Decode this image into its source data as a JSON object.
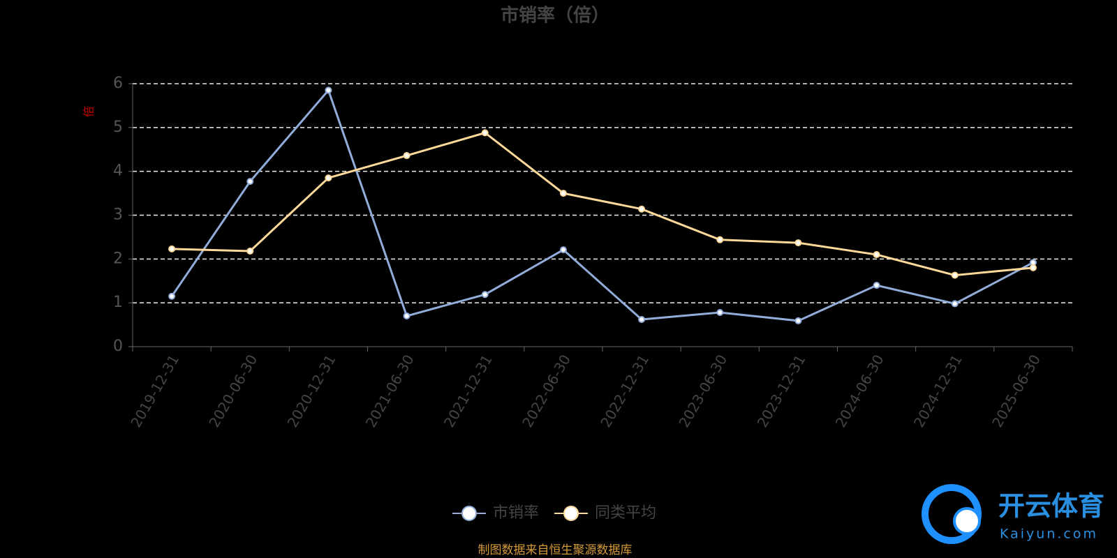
{
  "chart_data": {
    "type": "line",
    "title": "市销率（倍）",
    "y_label": "倍",
    "categories": [
      "2019-12-31",
      "2020-06-30",
      "2020-12-31",
      "2021-06-30",
      "2021-12-31",
      "2022-06-30",
      "2022-12-31",
      "2023-06-30",
      "2023-12-31",
      "2024-06-30",
      "2024-12-31",
      "2025-06-30"
    ],
    "series": [
      {
        "name": "市销率",
        "color": "#91acd8",
        "values": [
          1.15,
          3.77,
          5.85,
          0.7,
          1.19,
          2.21,
          0.62,
          0.78,
          0.59,
          1.4,
          0.98,
          1.92
        ]
      },
      {
        "name": "同类平均",
        "color": "#ffd99a",
        "values": [
          2.23,
          2.18,
          3.85,
          4.36,
          4.88,
          3.5,
          3.14,
          2.44,
          2.37,
          2.1,
          1.63,
          1.8
        ]
      }
    ],
    "ylim": [
      0,
      6
    ],
    "yticks": [
      0,
      1,
      2,
      3,
      4,
      5,
      6
    ],
    "grid": true,
    "source": "制图数据来自恒生聚源数据库"
  },
  "watermark": {
    "brand": "开云体育",
    "site": "Kaiyun.com"
  }
}
